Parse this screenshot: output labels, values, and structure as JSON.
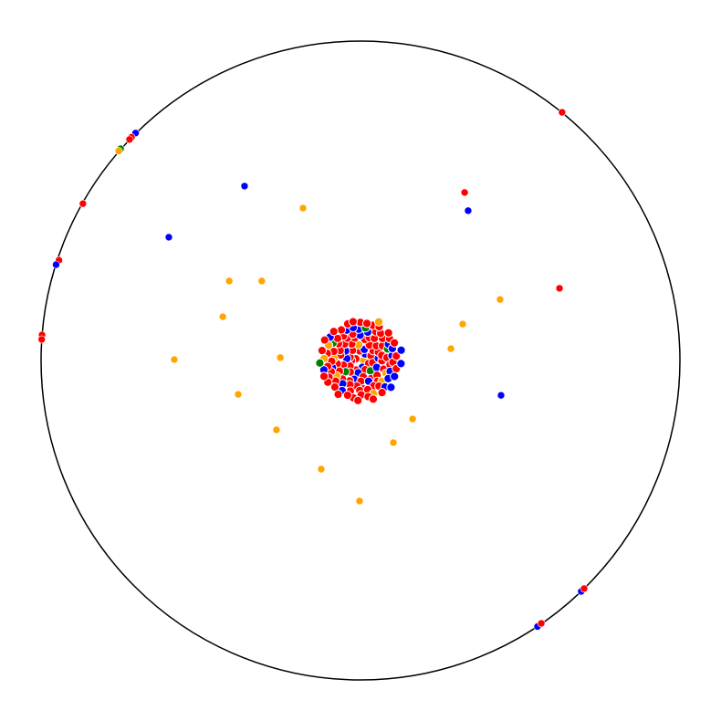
{
  "chart_data": {
    "type": "scatter",
    "title": "",
    "xlabel": "",
    "ylabel": "",
    "grid": false,
    "legend": "none",
    "boundary": "unit-circle",
    "xlim": [
      -1,
      1
    ],
    "ylim": [
      -1,
      1
    ],
    "colors": {
      "red": "#ff0000",
      "blue": "#0000ff",
      "orange": "#ffa500",
      "green": "#008000",
      "boundary": "#000000"
    },
    "points": [
      {
        "x": 0.631,
        "y": 0.777,
        "color": "red"
      },
      {
        "x": -0.704,
        "y": 0.712,
        "color": "blue"
      },
      {
        "x": -0.717,
        "y": 0.699,
        "color": "red"
      },
      {
        "x": -0.723,
        "y": 0.692,
        "color": "red"
      },
      {
        "x": -0.751,
        "y": 0.663,
        "color": "green"
      },
      {
        "x": -0.757,
        "y": 0.656,
        "color": "orange"
      },
      {
        "x": -0.869,
        "y": 0.491,
        "color": "red"
      },
      {
        "x": -0.944,
        "y": 0.314,
        "color": "red"
      },
      {
        "x": -0.953,
        "y": 0.3,
        "color": "blue"
      },
      {
        "x": -0.997,
        "y": 0.08,
        "color": "red"
      },
      {
        "x": -0.998,
        "y": 0.066,
        "color": "red"
      },
      {
        "x": 0.691,
        "y": -0.723,
        "color": "blue"
      },
      {
        "x": 0.7,
        "y": -0.714,
        "color": "red"
      },
      {
        "x": 0.554,
        "y": -0.833,
        "color": "blue"
      },
      {
        "x": 0.566,
        "y": -0.823,
        "color": "red"
      },
      {
        "x": -0.363,
        "y": 0.546,
        "color": "blue"
      },
      {
        "x": -0.6,
        "y": 0.386,
        "color": "blue"
      },
      {
        "x": -0.18,
        "y": 0.477,
        "color": "orange"
      },
      {
        "x": 0.326,
        "y": 0.526,
        "color": "red"
      },
      {
        "x": 0.337,
        "y": 0.469,
        "color": "blue"
      },
      {
        "x": 0.623,
        "y": 0.226,
        "color": "red"
      },
      {
        "x": 0.437,
        "y": 0.191,
        "color": "orange"
      },
      {
        "x": 0.32,
        "y": 0.114,
        "color": "orange"
      },
      {
        "x": 0.283,
        "y": 0.037,
        "color": "orange"
      },
      {
        "x": 0.44,
        "y": -0.109,
        "color": "blue"
      },
      {
        "x": -0.411,
        "y": 0.249,
        "color": "orange"
      },
      {
        "x": -0.309,
        "y": 0.249,
        "color": "orange"
      },
      {
        "x": -0.431,
        "y": 0.137,
        "color": "orange"
      },
      {
        "x": -0.583,
        "y": 0.003,
        "color": "orange"
      },
      {
        "x": -0.251,
        "y": 0.009,
        "color": "orange"
      },
      {
        "x": -0.383,
        "y": -0.106,
        "color": "orange"
      },
      {
        "x": -0.263,
        "y": -0.217,
        "color": "orange"
      },
      {
        "x": 0.163,
        "y": -0.183,
        "color": "orange"
      },
      {
        "x": 0.103,
        "y": -0.257,
        "color": "orange"
      },
      {
        "x": -0.123,
        "y": -0.34,
        "color": "orange"
      },
      {
        "x": -0.003,
        "y": -0.44,
        "color": "orange"
      }
    ],
    "cluster": {
      "center": {
        "x": 0.0,
        "y": 0.0
      },
      "radius": 0.13,
      "counts": {
        "red": 90,
        "blue": 30,
        "orange": 10,
        "green": 6
      }
    }
  }
}
